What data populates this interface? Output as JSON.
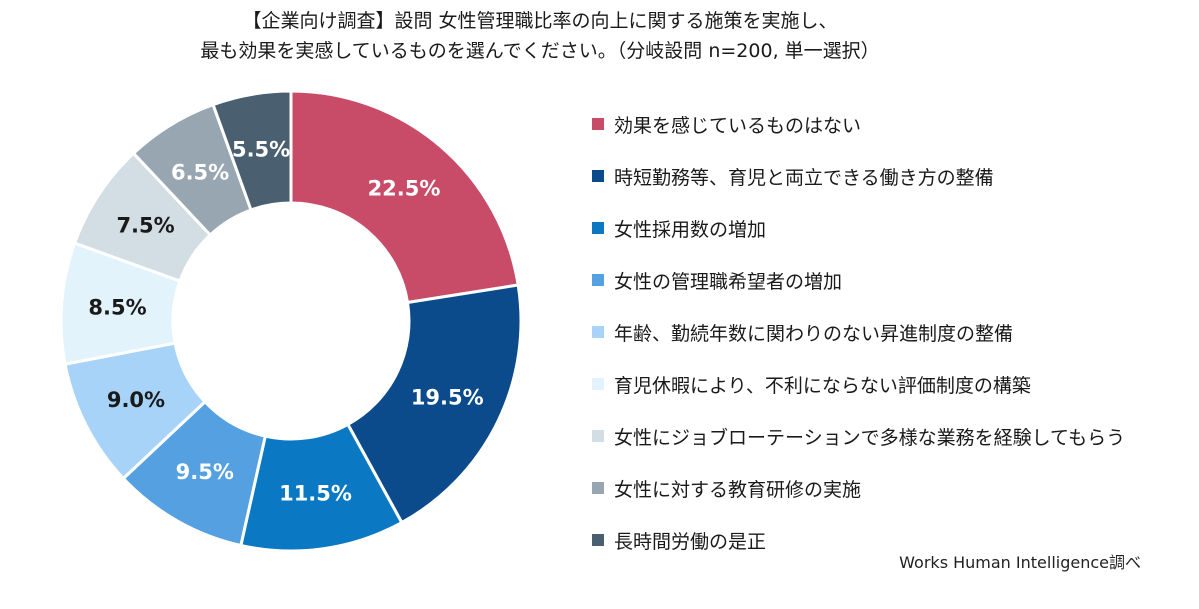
{
  "title": {
    "line1": "【企業向け調査】設問 女性管理職比率の向上に関する施策を実施し、",
    "line2": "最も効果を実感しているものを選んでください。（分岐設問 n=200, 単一選択）"
  },
  "source": "Works Human Intelligence調べ",
  "chart_data": {
    "type": "pie",
    "donut": true,
    "title": "【企業向け調査】設問 女性管理職比率の向上に関する施策を実施し、最も効果を実感しているものを選んでください。（分岐設問 n=200, 単一選択）",
    "legend_position": "right",
    "categories": [
      "効果を感じているものはない",
      "時短勤務等、育児と両立できる働き方の整備",
      "女性採用数の増加",
      "女性の管理職希望者の増加",
      "年齢、勤続年数に関わりのない昇進制度の整備",
      "育児休暇により、不利にならない評価制度の構築",
      "女性にジョブローテーションで多様な業務を経験してもらう",
      "女性に対する教育研修の実施",
      "長時間労働の是正"
    ],
    "values": [
      22.5,
      19.5,
      11.5,
      9.5,
      9.0,
      8.5,
      7.5,
      6.5,
      5.5
    ],
    "data_labels": [
      "22.5%",
      "19.5%",
      "11.5%",
      "9.5%",
      "9.0%",
      "8.5%",
      "7.5%",
      "6.5%",
      "5.5%"
    ],
    "unit": "%",
    "colors": [
      "#c84b68",
      "#0b4a8b",
      "#0a78c2",
      "#55a0e0",
      "#a6d3f7",
      "#e3f3fc",
      "#d2dde4",
      "#97a6b1",
      "#4a5f70"
    ],
    "label_colors": [
      "#ffffff",
      "#ffffff",
      "#ffffff",
      "#ffffff",
      "#1a1a1a",
      "#1a1a1a",
      "#1a1a1a",
      "#ffffff",
      "#ffffff"
    ]
  }
}
